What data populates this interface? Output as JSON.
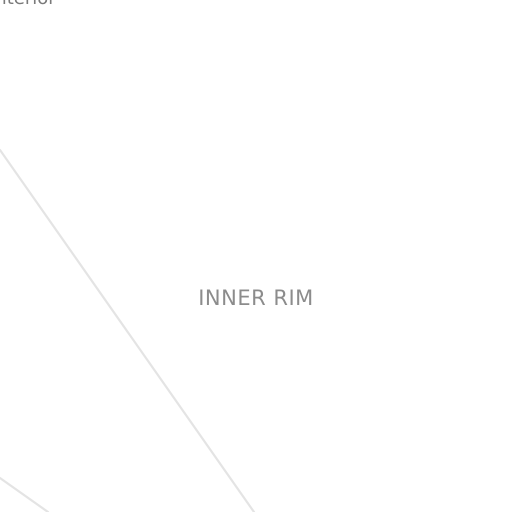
{
  "map": {
    "labels": {
      "district": "INNER RIM",
      "edge_cut": "Interior"
    }
  }
}
